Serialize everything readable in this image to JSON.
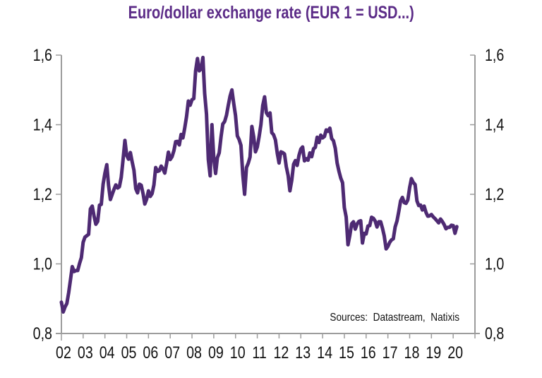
{
  "colors": {
    "title": "#5B2B87",
    "line": "#4E2A73",
    "axis": "#9C9C9C",
    "label": "#111111"
  },
  "chart_data": {
    "type": "line",
    "title": "Euro/dollar exchange rate (EUR 1 = USD...)",
    "annotation": "Sources:  Datastream,  Natixis",
    "grid": false,
    "legend": false,
    "xlabel": "",
    "ylabel": "",
    "ylim": [
      0.8,
      1.6
    ],
    "y_axis": {
      "sides": "both",
      "tick_values": [
        0.8,
        1.0,
        1.2,
        1.4,
        1.6
      ],
      "tick_labels": [
        "0,8",
        "1,0",
        "1,2",
        "1,4",
        "1,6"
      ]
    },
    "x_axis": {
      "start_year": 2002,
      "end_year": 2021,
      "tick_every_years": 1,
      "tick_labels": [
        "02",
        "03",
        "04",
        "05",
        "06",
        "07",
        "08",
        "09",
        "10",
        "11",
        "12",
        "13",
        "14",
        "15",
        "16",
        "17",
        "18",
        "19",
        "20"
      ]
    },
    "series": [
      {
        "name": "EUR/USD exchange rate",
        "frequency": "monthly",
        "start": "2002-01",
        "end": "2020-03",
        "values": [
          0.89,
          0.862,
          0.876,
          0.886,
          0.917,
          0.955,
          0.992,
          0.978,
          0.981,
          0.981,
          1.001,
          1.018,
          1.062,
          1.077,
          1.081,
          1.085,
          1.158,
          1.166,
          1.137,
          1.114,
          1.122,
          1.169,
          1.171,
          1.229,
          1.261,
          1.285,
          1.226,
          1.185,
          1.2,
          1.214,
          1.227,
          1.218,
          1.222,
          1.249,
          1.3,
          1.355,
          1.312,
          1.301,
          1.32,
          1.294,
          1.269,
          1.216,
          1.204,
          1.229,
          1.226,
          1.202,
          1.172,
          1.186,
          1.21,
          1.194,
          1.202,
          1.227,
          1.277,
          1.266,
          1.268,
          1.281,
          1.273,
          1.261,
          1.289,
          1.321,
          1.3,
          1.308,
          1.325,
          1.351,
          1.352,
          1.342,
          1.372,
          1.362,
          1.391,
          1.423,
          1.468,
          1.456,
          1.472,
          1.475,
          1.555,
          1.59,
          1.555,
          1.56,
          1.593,
          1.49,
          1.43,
          1.3,
          1.253,
          1.4,
          1.305,
          1.26,
          1.305,
          1.319,
          1.365,
          1.402,
          1.409,
          1.427,
          1.456,
          1.482,
          1.5,
          1.461,
          1.427,
          1.368,
          1.357,
          1.341,
          1.257,
          1.2,
          1.277,
          1.289,
          1.307,
          1.395,
          1.366,
          1.322,
          1.336,
          1.365,
          1.4,
          1.455,
          1.48,
          1.435,
          1.426,
          1.434,
          1.377,
          1.371,
          1.356,
          1.318,
          1.29,
          1.322,
          1.32,
          1.316,
          1.279,
          1.254,
          1.21,
          1.24,
          1.286,
          1.297,
          1.283,
          1.312,
          1.33,
          1.336,
          1.296,
          1.302,
          1.298,
          1.319,
          1.308,
          1.331,
          1.335,
          1.364,
          1.349,
          1.37,
          1.362,
          1.366,
          1.385,
          1.381,
          1.39,
          1.36,
          1.354,
          1.332,
          1.29,
          1.267,
          1.247,
          1.233,
          1.162,
          1.135,
          1.055,
          1.082,
          1.115,
          1.121,
          1.1,
          1.114,
          1.122,
          1.124,
          1.06,
          1.088,
          1.086,
          1.109,
          1.11,
          1.134,
          1.131,
          1.123,
          1.106,
          1.121,
          1.121,
          1.103,
          1.08,
          1.043,
          1.05,
          1.062,
          1.069,
          1.072,
          1.106,
          1.123,
          1.151,
          1.181,
          1.191,
          1.176,
          1.174,
          1.184,
          1.22,
          1.245,
          1.234,
          1.228,
          1.181,
          1.168,
          1.169,
          1.155,
          1.166,
          1.148,
          1.137,
          1.138,
          1.142,
          1.135,
          1.13,
          1.124,
          1.118,
          1.129,
          1.122,
          1.113,
          1.101,
          1.105,
          1.105,
          1.111,
          1.11,
          1.088,
          1.107
        ]
      }
    ]
  }
}
